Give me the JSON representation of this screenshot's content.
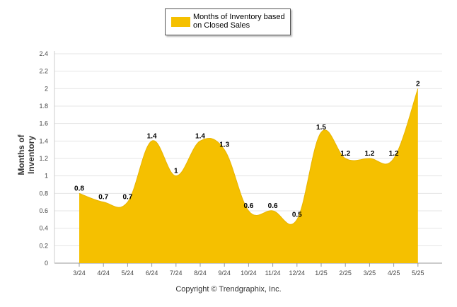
{
  "chart_data": {
    "type": "area",
    "categories": [
      "3/24",
      "4/24",
      "5/24",
      "6/24",
      "7/24",
      "8/24",
      "9/24",
      "10/24",
      "11/24",
      "12/24",
      "1/25",
      "2/25",
      "3/25",
      "4/25",
      "5/25"
    ],
    "series": [
      {
        "name": "Months of Inventory based on Closed Sales",
        "values": [
          0.8,
          0.7,
          0.7,
          1.4,
          1,
          1.4,
          1.3,
          0.6,
          0.6,
          0.5,
          1.5,
          1.2,
          1.2,
          1.2,
          2
        ],
        "labels": [
          "0.8",
          "0.7",
          "0.7",
          "1.4",
          "1",
          "1.4",
          "1.3",
          "0.6",
          "0.6",
          "0.5",
          "1.5",
          "1.2",
          "1.2",
          "1.2",
          "2"
        ],
        "color": "#f5c000"
      }
    ],
    "ylabel": "Months of Inventory",
    "ylim": [
      0,
      2.4
    ],
    "yticks": [
      "0",
      "0.2",
      "0.4",
      "0.6",
      "0.8",
      "1",
      "1.2",
      "1.4",
      "1.6",
      "1.8",
      "2",
      "2.2",
      "2.4"
    ],
    "grid": true,
    "legend_position": "top-center"
  },
  "copyright": "Copyright © Trendgraphix, Inc."
}
